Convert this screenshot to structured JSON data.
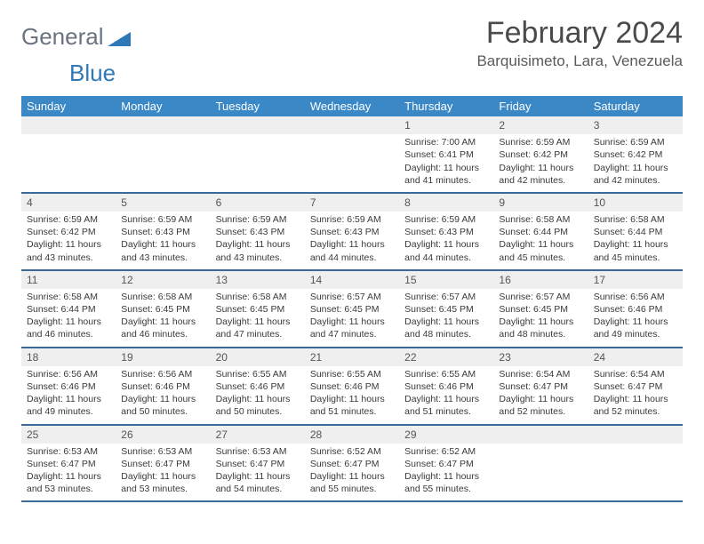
{
  "logo": {
    "text_a": "General",
    "text_b": "Blue"
  },
  "title": "February 2024",
  "location": "Barquisimeto, Lara, Venezuela",
  "colors": {
    "header_bar": "#3a88c6",
    "week_divider": "#3a6a9a",
    "daynum_bg": "#efefef",
    "logo_gray": "#6b7280",
    "logo_blue": "#2f78b7"
  },
  "weekdays": [
    "Sunday",
    "Monday",
    "Tuesday",
    "Wednesday",
    "Thursday",
    "Friday",
    "Saturday"
  ],
  "weeks": [
    [
      {
        "n": "",
        "sunrise": "",
        "sunset": "",
        "daylight": ""
      },
      {
        "n": "",
        "sunrise": "",
        "sunset": "",
        "daylight": ""
      },
      {
        "n": "",
        "sunrise": "",
        "sunset": "",
        "daylight": ""
      },
      {
        "n": "",
        "sunrise": "",
        "sunset": "",
        "daylight": ""
      },
      {
        "n": "1",
        "sunrise": "Sunrise: 7:00 AM",
        "sunset": "Sunset: 6:41 PM",
        "daylight": "Daylight: 11 hours and 41 minutes."
      },
      {
        "n": "2",
        "sunrise": "Sunrise: 6:59 AM",
        "sunset": "Sunset: 6:42 PM",
        "daylight": "Daylight: 11 hours and 42 minutes."
      },
      {
        "n": "3",
        "sunrise": "Sunrise: 6:59 AM",
        "sunset": "Sunset: 6:42 PM",
        "daylight": "Daylight: 11 hours and 42 minutes."
      }
    ],
    [
      {
        "n": "4",
        "sunrise": "Sunrise: 6:59 AM",
        "sunset": "Sunset: 6:42 PM",
        "daylight": "Daylight: 11 hours and 43 minutes."
      },
      {
        "n": "5",
        "sunrise": "Sunrise: 6:59 AM",
        "sunset": "Sunset: 6:43 PM",
        "daylight": "Daylight: 11 hours and 43 minutes."
      },
      {
        "n": "6",
        "sunrise": "Sunrise: 6:59 AM",
        "sunset": "Sunset: 6:43 PM",
        "daylight": "Daylight: 11 hours and 43 minutes."
      },
      {
        "n": "7",
        "sunrise": "Sunrise: 6:59 AM",
        "sunset": "Sunset: 6:43 PM",
        "daylight": "Daylight: 11 hours and 44 minutes."
      },
      {
        "n": "8",
        "sunrise": "Sunrise: 6:59 AM",
        "sunset": "Sunset: 6:43 PM",
        "daylight": "Daylight: 11 hours and 44 minutes."
      },
      {
        "n": "9",
        "sunrise": "Sunrise: 6:58 AM",
        "sunset": "Sunset: 6:44 PM",
        "daylight": "Daylight: 11 hours and 45 minutes."
      },
      {
        "n": "10",
        "sunrise": "Sunrise: 6:58 AM",
        "sunset": "Sunset: 6:44 PM",
        "daylight": "Daylight: 11 hours and 45 minutes."
      }
    ],
    [
      {
        "n": "11",
        "sunrise": "Sunrise: 6:58 AM",
        "sunset": "Sunset: 6:44 PM",
        "daylight": "Daylight: 11 hours and 46 minutes."
      },
      {
        "n": "12",
        "sunrise": "Sunrise: 6:58 AM",
        "sunset": "Sunset: 6:45 PM",
        "daylight": "Daylight: 11 hours and 46 minutes."
      },
      {
        "n": "13",
        "sunrise": "Sunrise: 6:58 AM",
        "sunset": "Sunset: 6:45 PM",
        "daylight": "Daylight: 11 hours and 47 minutes."
      },
      {
        "n": "14",
        "sunrise": "Sunrise: 6:57 AM",
        "sunset": "Sunset: 6:45 PM",
        "daylight": "Daylight: 11 hours and 47 minutes."
      },
      {
        "n": "15",
        "sunrise": "Sunrise: 6:57 AM",
        "sunset": "Sunset: 6:45 PM",
        "daylight": "Daylight: 11 hours and 48 minutes."
      },
      {
        "n": "16",
        "sunrise": "Sunrise: 6:57 AM",
        "sunset": "Sunset: 6:45 PM",
        "daylight": "Daylight: 11 hours and 48 minutes."
      },
      {
        "n": "17",
        "sunrise": "Sunrise: 6:56 AM",
        "sunset": "Sunset: 6:46 PM",
        "daylight": "Daylight: 11 hours and 49 minutes."
      }
    ],
    [
      {
        "n": "18",
        "sunrise": "Sunrise: 6:56 AM",
        "sunset": "Sunset: 6:46 PM",
        "daylight": "Daylight: 11 hours and 49 minutes."
      },
      {
        "n": "19",
        "sunrise": "Sunrise: 6:56 AM",
        "sunset": "Sunset: 6:46 PM",
        "daylight": "Daylight: 11 hours and 50 minutes."
      },
      {
        "n": "20",
        "sunrise": "Sunrise: 6:55 AM",
        "sunset": "Sunset: 6:46 PM",
        "daylight": "Daylight: 11 hours and 50 minutes."
      },
      {
        "n": "21",
        "sunrise": "Sunrise: 6:55 AM",
        "sunset": "Sunset: 6:46 PM",
        "daylight": "Daylight: 11 hours and 51 minutes."
      },
      {
        "n": "22",
        "sunrise": "Sunrise: 6:55 AM",
        "sunset": "Sunset: 6:46 PM",
        "daylight": "Daylight: 11 hours and 51 minutes."
      },
      {
        "n": "23",
        "sunrise": "Sunrise: 6:54 AM",
        "sunset": "Sunset: 6:47 PM",
        "daylight": "Daylight: 11 hours and 52 minutes."
      },
      {
        "n": "24",
        "sunrise": "Sunrise: 6:54 AM",
        "sunset": "Sunset: 6:47 PM",
        "daylight": "Daylight: 11 hours and 52 minutes."
      }
    ],
    [
      {
        "n": "25",
        "sunrise": "Sunrise: 6:53 AM",
        "sunset": "Sunset: 6:47 PM",
        "daylight": "Daylight: 11 hours and 53 minutes."
      },
      {
        "n": "26",
        "sunrise": "Sunrise: 6:53 AM",
        "sunset": "Sunset: 6:47 PM",
        "daylight": "Daylight: 11 hours and 53 minutes."
      },
      {
        "n": "27",
        "sunrise": "Sunrise: 6:53 AM",
        "sunset": "Sunset: 6:47 PM",
        "daylight": "Daylight: 11 hours and 54 minutes."
      },
      {
        "n": "28",
        "sunrise": "Sunrise: 6:52 AM",
        "sunset": "Sunset: 6:47 PM",
        "daylight": "Daylight: 11 hours and 55 minutes."
      },
      {
        "n": "29",
        "sunrise": "Sunrise: 6:52 AM",
        "sunset": "Sunset: 6:47 PM",
        "daylight": "Daylight: 11 hours and 55 minutes."
      },
      {
        "n": "",
        "sunrise": "",
        "sunset": "",
        "daylight": ""
      },
      {
        "n": "",
        "sunrise": "",
        "sunset": "",
        "daylight": ""
      }
    ]
  ]
}
